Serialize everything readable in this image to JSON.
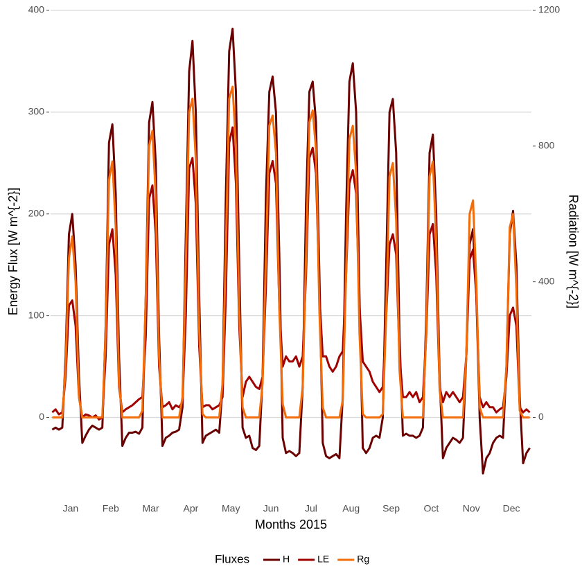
{
  "chart_data": {
    "type": "line",
    "xlabel": "Months 2015",
    "ylabel": "Energy Flux [W m^{-2}]",
    "y2label": "Radiation [W m^{-2}]",
    "legend_title": "Fluxes",
    "legend": "bottom",
    "grid": true,
    "categories": [
      "Jan",
      "Feb",
      "Mar",
      "Apr",
      "May",
      "Jun",
      "Jul",
      "Aug",
      "Sep",
      "Oct",
      "Nov",
      "Dec"
    ],
    "ylim": [
      -80,
      400
    ],
    "yticks": [
      0,
      100,
      200,
      300,
      400
    ],
    "y2lim": [
      -240,
      1200
    ],
    "y2ticks": [
      0,
      400,
      800,
      1200
    ],
    "series": [
      {
        "name": "H",
        "color": "#6b0000",
        "values": [
          [
            -12,
            -10,
            -12,
            -10,
            60,
            180,
            200,
            150,
            40,
            -25,
            -18,
            -12
          ],
          [
            -8,
            -10,
            -12,
            -10,
            90,
            270,
            288,
            220,
            60,
            -28,
            -20,
            -15
          ],
          [
            -15,
            -14,
            -16,
            -10,
            120,
            290,
            310,
            250,
            80,
            -28,
            -20,
            -18
          ],
          [
            -15,
            -14,
            -12,
            10,
            180,
            340,
            370,
            300,
            120,
            -25,
            -18,
            -16
          ],
          [
            -14,
            -12,
            -15,
            30,
            220,
            360,
            382,
            320,
            150,
            -10,
            -20,
            -18
          ],
          [
            -30,
            -32,
            -28,
            40,
            220,
            320,
            335,
            300,
            160,
            -20,
            -35,
            -33
          ],
          [
            -35,
            -38,
            -35,
            30,
            210,
            320,
            330,
            290,
            140,
            -25,
            -38,
            -40
          ],
          [
            -38,
            -36,
            -40,
            20,
            200,
            330,
            348,
            300,
            120,
            -30,
            -35,
            -30
          ],
          [
            -20,
            -18,
            -20,
            0,
            150,
            300,
            313,
            260,
            80,
            -18,
            -16,
            -18
          ],
          [
            -18,
            -20,
            -18,
            -10,
            100,
            260,
            278,
            200,
            40,
            -40,
            -30,
            -25
          ],
          [
            -20,
            -22,
            -25,
            -20,
            60,
            170,
            185,
            120,
            0,
            -55,
            -40,
            -35
          ],
          [
            -25,
            -20,
            -18,
            -20,
            50,
            180,
            203,
            150,
            20,
            -45,
            -35,
            -30
          ]
        ]
      },
      {
        "name": "LE",
        "color": "#a00000",
        "values": [
          [
            5,
            8,
            3,
            5,
            40,
            110,
            115,
            90,
            20,
            0,
            3,
            2
          ],
          [
            0,
            2,
            -2,
            0,
            60,
            170,
            185,
            140,
            30,
            5,
            8,
            10
          ],
          [
            12,
            15,
            18,
            20,
            80,
            215,
            228,
            180,
            50,
            10,
            12,
            15
          ],
          [
            8,
            12,
            10,
            15,
            100,
            245,
            255,
            210,
            70,
            10,
            12,
            12
          ],
          [
            8,
            10,
            12,
            20,
            120,
            270,
            285,
            230,
            90,
            20,
            35,
            40
          ],
          [
            35,
            30,
            28,
            40,
            130,
            240,
            252,
            230,
            110,
            50,
            60,
            55
          ],
          [
            55,
            60,
            50,
            60,
            140,
            255,
            265,
            240,
            120,
            60,
            60,
            50
          ],
          [
            45,
            50,
            60,
            65,
            140,
            230,
            243,
            220,
            110,
            55,
            50,
            45
          ],
          [
            35,
            30,
            25,
            30,
            100,
            170,
            180,
            160,
            60,
            20,
            20,
            25
          ],
          [
            20,
            25,
            15,
            20,
            80,
            180,
            190,
            140,
            30,
            15,
            25,
            20
          ],
          [
            25,
            20,
            15,
            20,
            60,
            155,
            165,
            120,
            20,
            10,
            15,
            10
          ],
          [
            10,
            5,
            8,
            10,
            40,
            100,
            108,
            90,
            10,
            5,
            8,
            5
          ]
        ]
      },
      {
        "name": "Rg",
        "color": "#f26c0a",
        "axis": "y2",
        "values": [
          [
            0,
            0,
            0,
            0,
            150,
            470,
            534,
            400,
            60,
            0,
            0,
            0
          ],
          [
            0,
            0,
            0,
            0,
            250,
            700,
            755,
            560,
            100,
            0,
            0,
            0
          ],
          [
            0,
            0,
            0,
            20,
            350,
            800,
            845,
            650,
            180,
            0,
            0,
            0
          ],
          [
            0,
            0,
            0,
            60,
            450,
            900,
            940,
            760,
            260,
            10,
            0,
            0
          ],
          [
            0,
            0,
            0,
            100,
            500,
            940,
            975,
            800,
            320,
            30,
            0,
            0
          ],
          [
            0,
            0,
            0,
            100,
            480,
            860,
            890,
            780,
            320,
            40,
            0,
            0
          ],
          [
            0,
            0,
            0,
            90,
            470,
            870,
            905,
            790,
            310,
            30,
            0,
            0
          ],
          [
            0,
            0,
            0,
            50,
            420,
            820,
            860,
            720,
            250,
            10,
            0,
            0
          ],
          [
            0,
            0,
            0,
            10,
            300,
            710,
            750,
            580,
            140,
            0,
            0,
            0
          ],
          [
            0,
            0,
            0,
            0,
            250,
            710,
            755,
            520,
            80,
            0,
            0,
            0
          ],
          [
            0,
            0,
            0,
            0,
            180,
            600,
            640,
            400,
            30,
            0,
            0,
            0
          ],
          [
            0,
            0,
            0,
            0,
            150,
            560,
            600,
            380,
            20,
            0,
            0,
            0
          ]
        ]
      }
    ]
  }
}
